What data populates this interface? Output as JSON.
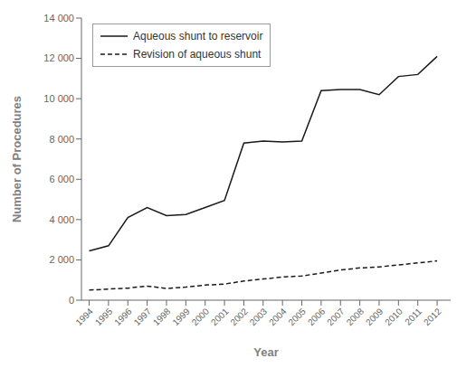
{
  "chart_data": {
    "type": "line",
    "x": [
      1994,
      1995,
      1996,
      1997,
      1998,
      1999,
      2000,
      2001,
      2002,
      2003,
      2004,
      2005,
      2006,
      2007,
      2008,
      2009,
      2010,
      2011,
      2012
    ],
    "series": [
      {
        "name": "Aqueous shunt to reservoir",
        "color": "#1a1a1a",
        "line_style": "solid",
        "values": [
          2450,
          2700,
          4100,
          4600,
          4200,
          4250,
          4600,
          4950,
          7800,
          7900,
          7850,
          7900,
          10400,
          10450,
          10450,
          10200,
          11100,
          11200,
          12100
        ]
      },
      {
        "name": "Revision of aqueous shunt",
        "color": "#1a1a1a",
        "line_style": "dashed",
        "values": [
          500,
          550,
          600,
          700,
          580,
          650,
          750,
          800,
          950,
          1050,
          1150,
          1200,
          1350,
          1500,
          1600,
          1650,
          1750,
          1850,
          1950
        ]
      }
    ],
    "xlabel": "Year",
    "ylabel": "Number of Procedures",
    "xlim": [
      1993.6,
      2012.7
    ],
    "xticks": [
      1994,
      1995,
      1996,
      1997,
      1998,
      1999,
      2000,
      2001,
      2002,
      2003,
      2004,
      2005,
      2006,
      2007,
      2008,
      2009,
      2010,
      2011,
      2012
    ],
    "ylim": [
      0,
      14000
    ],
    "yticks": [
      0,
      {
        "value": 2000,
        "label": "2 000"
      },
      {
        "value": 4000,
        "label": "4 000"
      },
      {
        "value": 6000,
        "label": "6 000"
      },
      {
        "value": 8000,
        "label": "8 000"
      },
      {
        "value": 10000,
        "label": "10 000"
      },
      {
        "value": 12000,
        "label": "12 000"
      },
      {
        "value": 14000,
        "label": "14 000"
      }
    ],
    "grid": false,
    "legend": "upper left"
  }
}
